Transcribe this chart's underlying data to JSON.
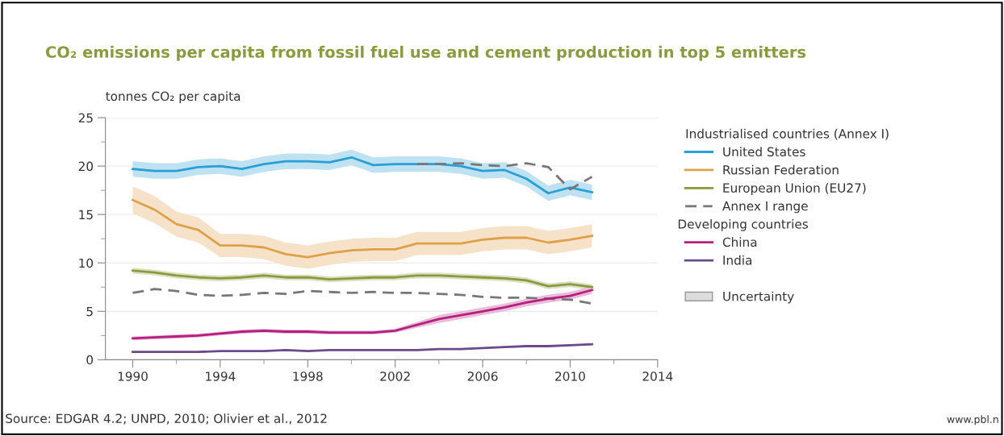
{
  "chart_data": {
    "type": "line",
    "title": "CO₂ emissions per capita from fossil fuel use and cement production in top 5 emitters",
    "ylabel": "tonnes CO₂ per capita",
    "legend_title": "Industrialised countries (Annex I)",
    "annotations": [
      "Source: EDGAR 4.2; UNPD, 2010; Olivier et al., 2012",
      "www.pbl.n",
      "Developing countries",
      "Uncertainty"
    ],
    "x": [
      1990,
      1991,
      1992,
      1993,
      1994,
      1995,
      1996,
      1997,
      1998,
      1999,
      2000,
      2001,
      2002,
      2003,
      2004,
      2005,
      2006,
      2007,
      2008,
      2009,
      2010,
      2011
    ],
    "series": [
      {
        "name": "United States",
        "color": "#2a9fd6",
        "values": [
          19.7,
          19.5,
          19.5,
          19.9,
          20.0,
          19.7,
          20.2,
          20.5,
          20.5,
          20.4,
          20.9,
          20.1,
          20.2,
          20.2,
          20.2,
          20.0,
          19.5,
          19.6,
          18.7,
          17.2,
          17.8,
          17.3
        ],
        "lower": [
          18.9,
          18.7,
          18.7,
          19.1,
          19.2,
          18.9,
          19.4,
          19.7,
          19.7,
          19.6,
          20.1,
          19.3,
          19.4,
          19.4,
          19.4,
          19.2,
          18.7,
          18.8,
          17.9,
          16.4,
          17.0,
          16.5
        ],
        "upper": [
          20.5,
          20.3,
          20.3,
          20.7,
          20.8,
          20.5,
          21.0,
          21.3,
          21.3,
          21.2,
          21.7,
          20.9,
          21.0,
          21.0,
          21.0,
          20.8,
          20.3,
          20.4,
          19.5,
          18.0,
          18.6,
          18.1
        ]
      },
      {
        "name": "Russian Federation",
        "color": "#e0a04a",
        "values": [
          16.5,
          15.5,
          14.0,
          13.4,
          11.8,
          11.8,
          11.6,
          10.9,
          10.6,
          11.0,
          11.3,
          11.4,
          11.4,
          12.0,
          12.0,
          12.0,
          12.4,
          12.6,
          12.6,
          12.1,
          12.4,
          12.8
        ],
        "lower": [
          15.1,
          14.1,
          12.7,
          12.1,
          10.6,
          10.6,
          10.4,
          9.7,
          9.4,
          9.8,
          10.1,
          10.2,
          10.2,
          10.8,
          10.8,
          10.8,
          11.2,
          11.4,
          11.4,
          10.9,
          11.2,
          11.6
        ],
        "upper": [
          17.9,
          16.9,
          15.3,
          14.7,
          13.0,
          13.0,
          12.8,
          12.1,
          11.8,
          12.2,
          12.5,
          12.6,
          12.6,
          13.2,
          13.2,
          13.2,
          13.6,
          13.8,
          13.8,
          13.3,
          13.6,
          14.0
        ]
      },
      {
        "name": "European Union (EU27)",
        "color": "#8c9a3e",
        "values": [
          9.2,
          9.0,
          8.7,
          8.5,
          8.4,
          8.5,
          8.7,
          8.5,
          8.5,
          8.3,
          8.4,
          8.5,
          8.5,
          8.7,
          8.7,
          8.6,
          8.5,
          8.4,
          8.2,
          7.6,
          7.8,
          7.5
        ],
        "lower": [
          8.9,
          8.7,
          8.4,
          8.2,
          8.1,
          8.2,
          8.4,
          8.2,
          8.2,
          8.0,
          8.1,
          8.2,
          8.2,
          8.4,
          8.4,
          8.3,
          8.2,
          8.1,
          7.9,
          7.3,
          7.5,
          7.2
        ],
        "upper": [
          9.5,
          9.3,
          9.0,
          8.8,
          8.7,
          8.8,
          9.0,
          8.8,
          8.8,
          8.6,
          8.7,
          8.8,
          8.8,
          9.0,
          9.0,
          8.9,
          8.8,
          8.7,
          8.5,
          7.9,
          8.1,
          7.8
        ]
      },
      {
        "name": "Annex I range",
        "color": "#777777",
        "line_style": "dashed",
        "values": [
          6.9,
          7.3,
          7.1,
          6.7,
          6.6,
          6.7,
          6.9,
          6.8,
          7.1,
          7.0,
          6.9,
          7.0,
          6.9,
          6.9,
          6.8,
          6.7,
          6.5,
          6.4,
          6.4,
          6.3,
          6.2,
          5.8
        ]
      },
      {
        "color": "#777777",
        "line_style": "dashed",
        "values": [
          null,
          null,
          null,
          null,
          null,
          null,
          null,
          null,
          null,
          null,
          null,
          null,
          null,
          20.2,
          20.2,
          20.3,
          20.1,
          20.0,
          20.3,
          19.9,
          17.6,
          18.9
        ]
      },
      {
        "name": "China",
        "color": "#b5207f",
        "values": [
          2.2,
          2.3,
          2.4,
          2.5,
          2.7,
          2.9,
          3.0,
          2.9,
          2.9,
          2.8,
          2.8,
          2.8,
          3.0,
          3.6,
          4.2,
          4.6,
          5.0,
          5.4,
          5.9,
          6.3,
          6.6,
          7.2
        ],
        "lower": [
          2.0,
          2.1,
          2.2,
          2.3,
          2.5,
          2.7,
          2.8,
          2.7,
          2.7,
          2.6,
          2.6,
          2.6,
          2.8,
          3.3,
          3.8,
          4.2,
          4.6,
          5.0,
          5.5,
          5.9,
          6.2,
          6.8
        ],
        "upper": [
          2.4,
          2.5,
          2.6,
          2.7,
          2.9,
          3.1,
          3.2,
          3.1,
          3.1,
          3.0,
          3.0,
          3.0,
          3.2,
          3.9,
          4.6,
          5.0,
          5.4,
          5.8,
          6.3,
          6.7,
          7.0,
          7.6
        ]
      },
      {
        "name": "India",
        "color": "#6a4a8c",
        "values": [
          0.8,
          0.8,
          0.8,
          0.8,
          0.9,
          0.9,
          0.9,
          1.0,
          0.9,
          1.0,
          1.0,
          1.0,
          1.0,
          1.0,
          1.1,
          1.1,
          1.2,
          1.3,
          1.4,
          1.4,
          1.5,
          1.6
        ]
      }
    ],
    "xlim": [
      1988.75,
      2014
    ],
    "xticks": [
      1990,
      1994,
      1998,
      2002,
      2006,
      2010,
      2014
    ],
    "ylim": [
      0,
      25
    ],
    "yticks": [
      0,
      5,
      10,
      15,
      20,
      25
    ],
    "grid": "y",
    "legend": "right",
    "line_style": "solid",
    "marker": "none"
  }
}
